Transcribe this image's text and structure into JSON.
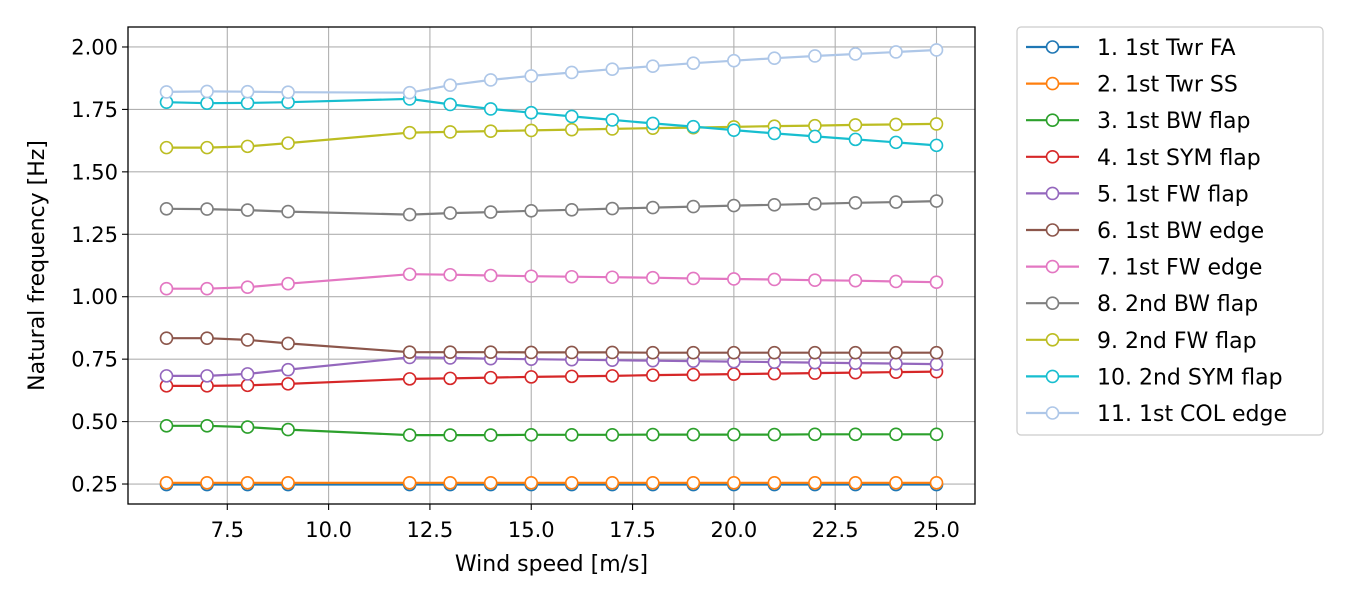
{
  "chart_data": {
    "type": "line",
    "xlabel": "Wind speed [m/s]",
    "ylabel": "Natural frequency [Hz]",
    "xlim": [
      5.05,
      25.95
    ],
    "ylim": [
      0.17,
      2.08
    ],
    "xticks": [
      7.5,
      10.0,
      12.5,
      15.0,
      17.5,
      20.0,
      22.5,
      25.0
    ],
    "xtick_labels": [
      "7.5",
      "10.0",
      "12.5",
      "15.0",
      "17.5",
      "20.0",
      "22.5",
      "25.0"
    ],
    "yticks": [
      0.25,
      0.5,
      0.75,
      1.0,
      1.25,
      1.5,
      1.75,
      2.0
    ],
    "ytick_labels": [
      "0.25",
      "0.50",
      "0.75",
      "1.00",
      "1.25",
      "1.50",
      "1.75",
      "2.00"
    ],
    "grid": true,
    "marker": "open-circle",
    "legend_position": "outside-right",
    "x": [
      6,
      7,
      8,
      9,
      12,
      13,
      14,
      15,
      16,
      17,
      18,
      19,
      20,
      21,
      22,
      23,
      24,
      25
    ],
    "series": [
      {
        "name": "1. 1st Twr FA",
        "color": "#1f77b4",
        "values": [
          0.248,
          0.248,
          0.248,
          0.248,
          0.248,
          0.248,
          0.248,
          0.248,
          0.248,
          0.248,
          0.248,
          0.248,
          0.248,
          0.248,
          0.248,
          0.248,
          0.248,
          0.248
        ]
      },
      {
        "name": "2. 1st Twr SS",
        "color": "#ff7f0e",
        "values": [
          0.255,
          0.255,
          0.255,
          0.255,
          0.255,
          0.255,
          0.255,
          0.255,
          0.255,
          0.255,
          0.255,
          0.255,
          0.255,
          0.255,
          0.255,
          0.255,
          0.255,
          0.255
        ]
      },
      {
        "name": "3. 1st BW flap",
        "color": "#2ca02c",
        "values": [
          0.483,
          0.483,
          0.478,
          0.468,
          0.446,
          0.446,
          0.446,
          0.447,
          0.447,
          0.447,
          0.448,
          0.448,
          0.448,
          0.448,
          0.449,
          0.449,
          0.449,
          0.449
        ]
      },
      {
        "name": "4. 1st SYM flap",
        "color": "#d62728",
        "values": [
          0.643,
          0.643,
          0.645,
          0.651,
          0.671,
          0.673,
          0.676,
          0.679,
          0.681,
          0.683,
          0.686,
          0.688,
          0.69,
          0.692,
          0.694,
          0.696,
          0.698,
          0.7
        ]
      },
      {
        "name": "5. 1st FW flap",
        "color": "#9467bd",
        "values": [
          0.683,
          0.683,
          0.691,
          0.708,
          0.757,
          0.755,
          0.752,
          0.75,
          0.748,
          0.746,
          0.744,
          0.742,
          0.74,
          0.738,
          0.736,
          0.734,
          0.732,
          0.73
        ]
      },
      {
        "name": "6. 1st BW edge",
        "color": "#8c564b",
        "values": [
          0.834,
          0.834,
          0.827,
          0.813,
          0.778,
          0.778,
          0.778,
          0.777,
          0.777,
          0.777,
          0.776,
          0.776,
          0.776,
          0.776,
          0.776,
          0.776,
          0.776,
          0.776
        ]
      },
      {
        "name": "7. 1st FW edge",
        "color": "#e377c2",
        "values": [
          1.032,
          1.032,
          1.038,
          1.052,
          1.09,
          1.088,
          1.085,
          1.082,
          1.08,
          1.078,
          1.076,
          1.073,
          1.071,
          1.069,
          1.066,
          1.064,
          1.061,
          1.058
        ]
      },
      {
        "name": "8. 2nd BW flap",
        "color": "#7f7f7f",
        "values": [
          1.352,
          1.351,
          1.347,
          1.341,
          1.329,
          1.335,
          1.339,
          1.344,
          1.348,
          1.353,
          1.357,
          1.361,
          1.365,
          1.368,
          1.372,
          1.376,
          1.379,
          1.383
        ]
      },
      {
        "name": "9. 2nd FW flap",
        "color": "#bcbd22",
        "values": [
          1.597,
          1.597,
          1.602,
          1.615,
          1.657,
          1.66,
          1.663,
          1.666,
          1.669,
          1.672,
          1.675,
          1.677,
          1.68,
          1.683,
          1.685,
          1.688,
          1.69,
          1.692
        ]
      },
      {
        "name": "10. 2nd SYM flap",
        "color": "#17becf",
        "values": [
          1.779,
          1.775,
          1.776,
          1.779,
          1.792,
          1.77,
          1.752,
          1.737,
          1.722,
          1.708,
          1.694,
          1.681,
          1.667,
          1.654,
          1.642,
          1.63,
          1.618,
          1.606
        ]
      },
      {
        "name": "11. 1st COL edge",
        "color": "#aec7e8",
        "values": [
          1.82,
          1.822,
          1.821,
          1.819,
          1.817,
          1.847,
          1.868,
          1.884,
          1.898,
          1.911,
          1.923,
          1.935,
          1.945,
          1.955,
          1.964,
          1.972,
          1.98,
          1.988
        ]
      }
    ]
  }
}
